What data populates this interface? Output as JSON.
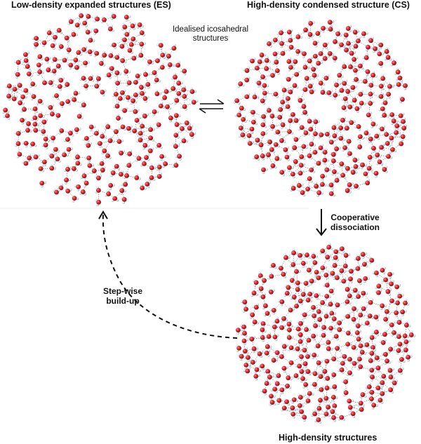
{
  "titles": {
    "top_left": "Low-density expanded structures (ES)",
    "top_right": "High-density condensed structure (CS)",
    "bottom_right": "High-density structures"
  },
  "notes": {
    "idealised_line1": "Idealised icosahedral",
    "idealised_line2": "structures"
  },
  "labels": {
    "cooperative_line1": "Cooperative",
    "cooperative_line2": "dissociation",
    "stepwise_line1": "Step-wise",
    "stepwise_line2": "build-up"
  },
  "colors": {
    "oxygen": "#d9232e",
    "hydrogen": "#c9e6ea",
    "hbond": "#2a2a2a",
    "arrow": "#111111"
  },
  "icons": {
    "equilibrium": "equilibrium-arrows-icon",
    "down_arrow": "down-arrow-icon",
    "curved_dashed_arrow": "curved-dashed-arrow-icon"
  }
}
